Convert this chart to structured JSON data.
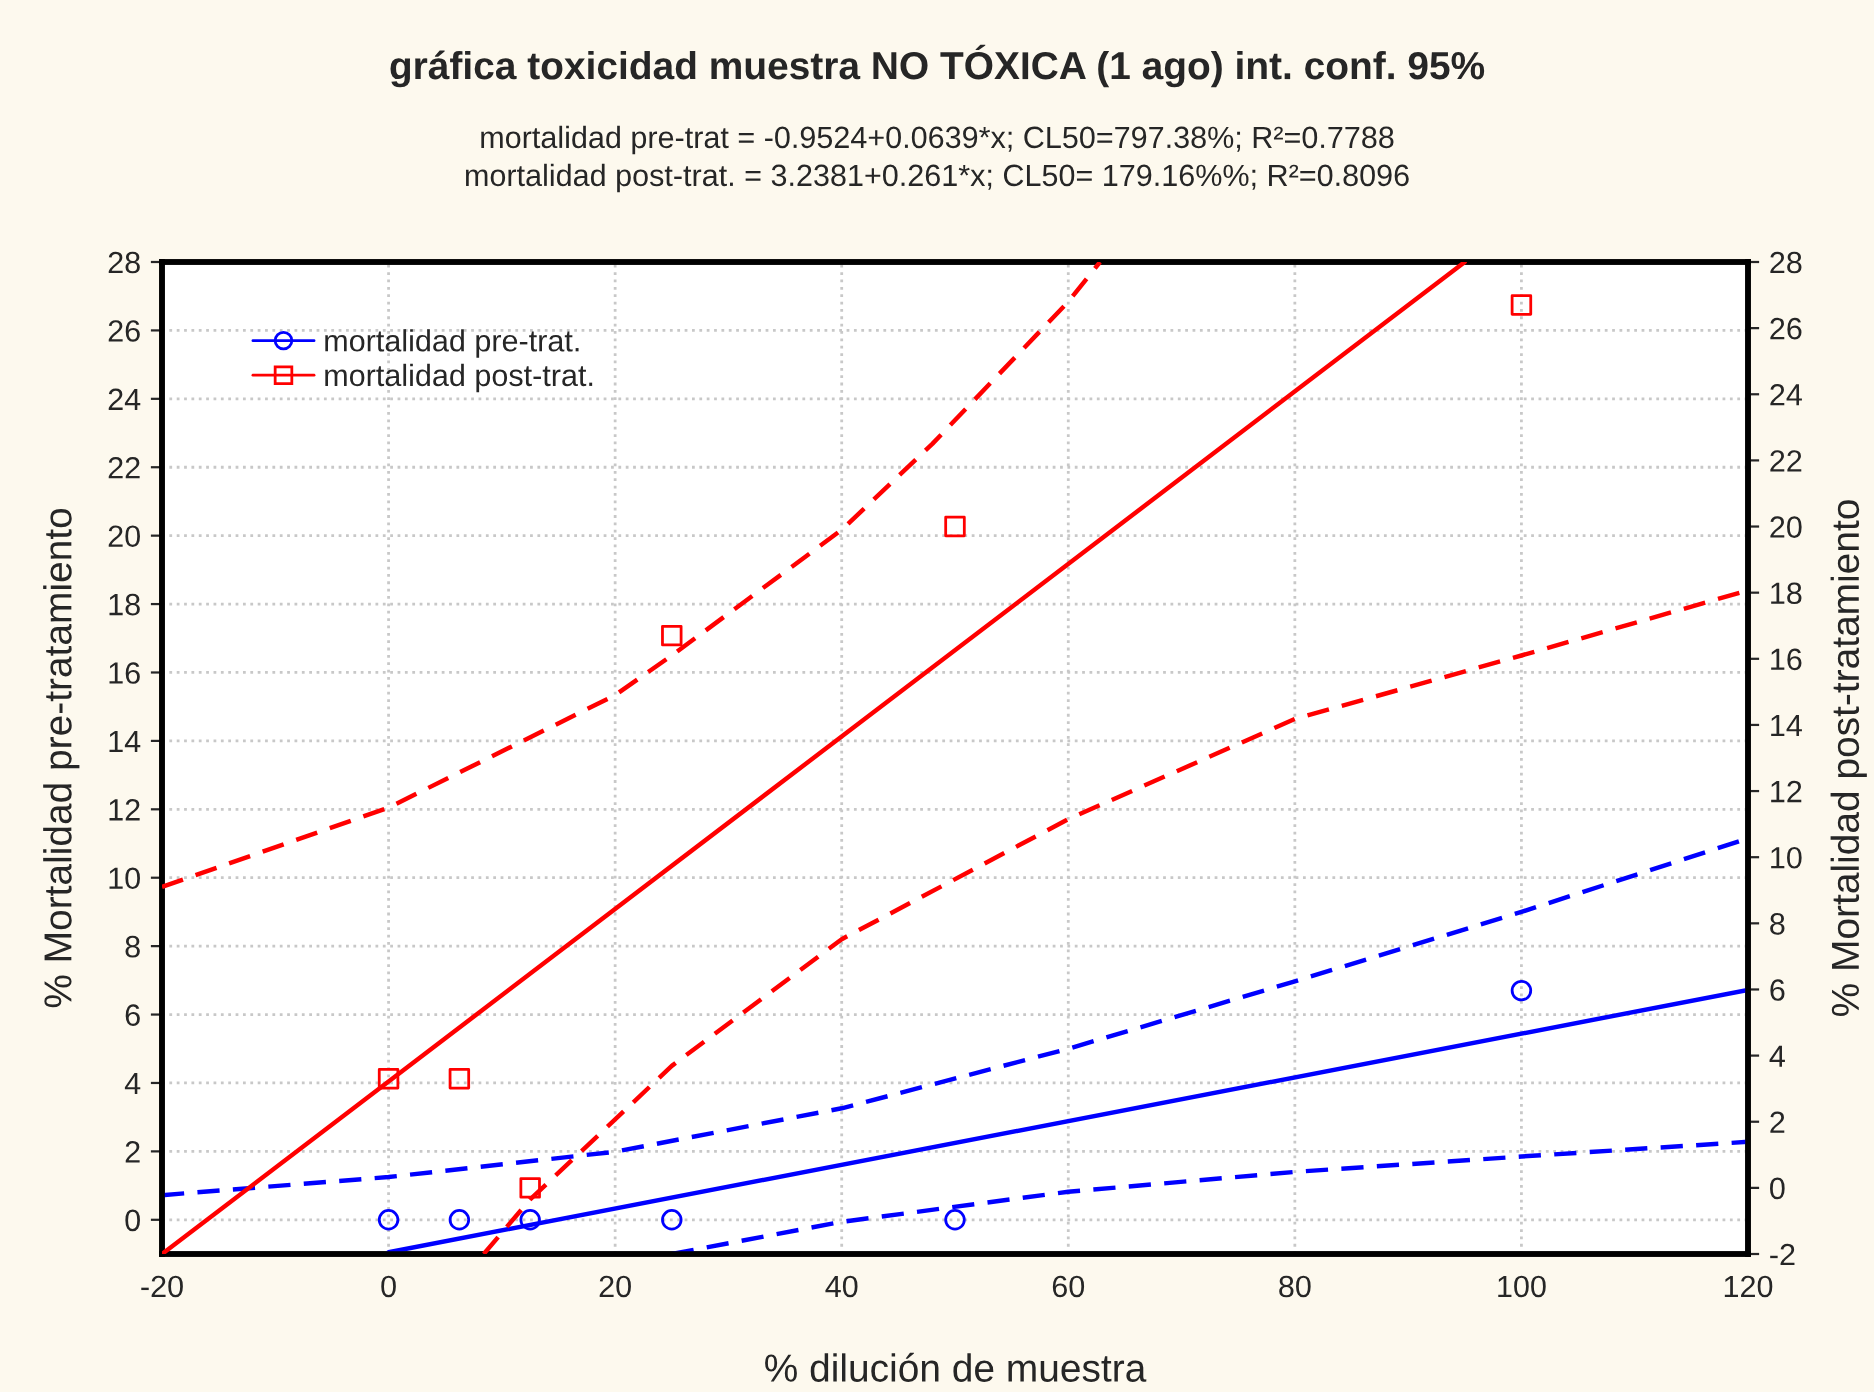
{
  "chart_data": {
    "type": "scatter",
    "title": "gráfica toxicidad muestra NO TÓXICA (1 ago) int. conf. 95%",
    "subtitle": [
      "mortalidad pre-trat = -0.9524+0.0639*x; CL50=797.38%; R²=0.7788",
      "mortalidad post-trat. = 3.2381+0.261*x; CL50= 179.16%%; R²=0.8096"
    ],
    "xlabel": "% dilución de muestra",
    "ylabel": "% Mortalidad pre-tratamiento",
    "y2label": "% Mortalidad post-tratamiento",
    "xlim": [
      -20,
      120
    ],
    "xticks": [
      -20,
      0,
      20,
      40,
      60,
      80,
      100,
      120
    ],
    "ylim": [
      -1,
      28
    ],
    "yticks": [
      0,
      2,
      4,
      6,
      8,
      10,
      12,
      14,
      16,
      18,
      20,
      22,
      24,
      26,
      28
    ],
    "y2lim": [
      -2,
      28
    ],
    "y2ticks": [
      -2,
      0,
      2,
      4,
      6,
      8,
      10,
      12,
      14,
      16,
      18,
      20,
      22,
      24,
      26,
      28
    ],
    "grid": true,
    "legend": "top left",
    "series": [
      {
        "name": "mortalidad pre-trat.",
        "color": "#0000ff",
        "marker": "circle",
        "x": [
          0,
          6.25,
          12.5,
          25,
          50,
          100
        ],
        "values": [
          0,
          0,
          0,
          0,
          0,
          6.7
        ]
      },
      {
        "name": "mortalidad post-trat.",
        "axis": "y2",
        "color": "#ff0000",
        "marker": "square",
        "x": [
          0,
          6.25,
          12.5,
          25,
          50,
          100
        ],
        "values": [
          3.3,
          3.3,
          0,
          16.7,
          20,
          26.7
        ]
      },
      {
        "type": "line",
        "color": "#0000ff",
        "line_style": "solid",
        "x": [
          0,
          120
        ],
        "values": [
          -0.95,
          6.72
        ]
      },
      {
        "type": "line",
        "color": "#0000ff",
        "line_style": "dashed",
        "x": [
          -20,
          0,
          20,
          40,
          60,
          80,
          100,
          120
        ],
        "values": [
          0.72,
          1.25,
          1.99,
          3.26,
          5.0,
          6.97,
          9.0,
          11.15
        ]
      },
      {
        "type": "line",
        "color": "#0000ff",
        "line_style": "dashed",
        "x": [
          25,
          40,
          60,
          80,
          100,
          120
        ],
        "values": [
          -1,
          -0.06,
          0.82,
          1.4,
          1.85,
          2.28
        ]
      },
      {
        "type": "line",
        "axis": "y2",
        "color": "#ff0000",
        "line_style": "solid",
        "x": [
          -20,
          95
        ],
        "values": [
          -2,
          28
        ]
      },
      {
        "type": "line",
        "axis": "y2",
        "color": "#ff0000",
        "line_style": "dashed",
        "x": [
          -20,
          0,
          20,
          25,
          40,
          48,
          60,
          62.8
        ],
        "values": [
          9.1,
          11.5,
          14.9,
          16.1,
          19.9,
          22.5,
          26.8,
          28
        ]
      },
      {
        "type": "line",
        "axis": "y2",
        "color": "#ff0000",
        "line_style": "dashed",
        "x": [
          8.4,
          12.5,
          20,
          25,
          40,
          60,
          80,
          100,
          120
        ],
        "values": [
          -2,
          -0.35,
          2.07,
          3.69,
          7.52,
          11.15,
          14.18,
          16.1,
          18.07
        ]
      }
    ]
  }
}
